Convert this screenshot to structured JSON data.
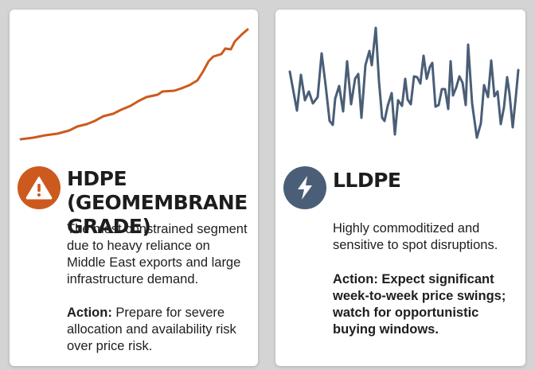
{
  "cards": [
    {
      "title": "HDPE (GEOMEMBRANE GRADE)",
      "icon": "warning-icon",
      "accent": "#cc5a1e",
      "description": "The most constrained segment due to heavy reliance on Middle East exports and large infrastructure demand.",
      "action_label": "Action:",
      "action_text": " Prepare for severe allocation and availability risk over price risk.",
      "trend": "steady-rise"
    },
    {
      "title": "LLDPE",
      "icon": "lightning-bolt-icon",
      "accent": "#4a5e77",
      "description": "Highly commoditized and sensitive to spot disruptions.",
      "action_label": "Action:",
      "action_text": " Expect significant week-to-week price swings; watch for opportunistic buying windows.",
      "trend": "volatile"
    }
  ]
}
